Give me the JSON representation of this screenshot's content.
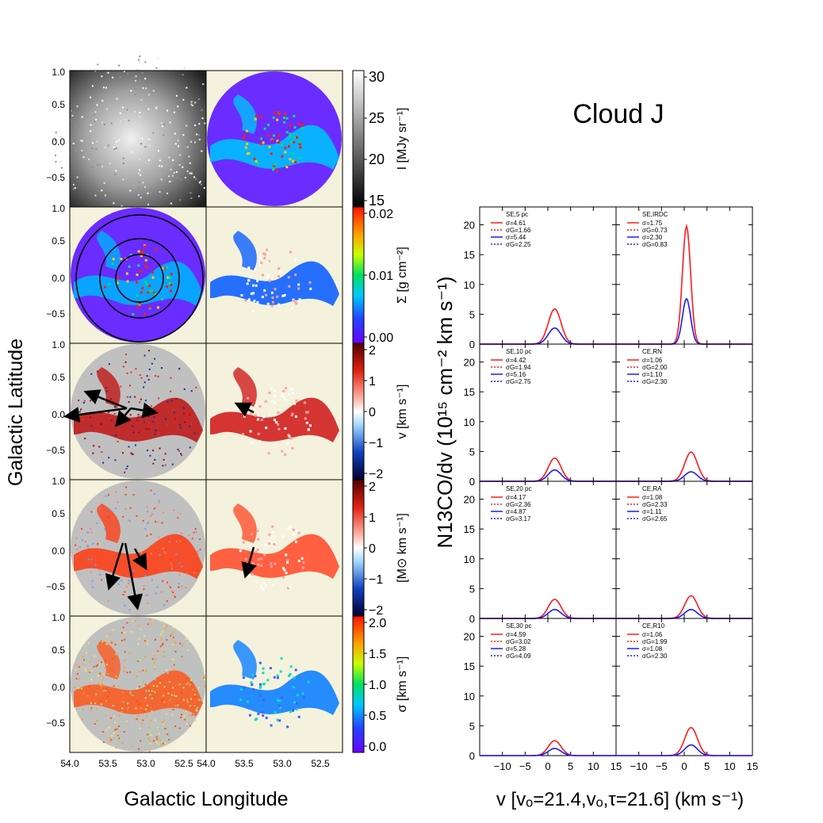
{
  "title": "Cloud J",
  "colors": {
    "red": "#ff1a1a",
    "blue": "#1a1aff",
    "cream": "#f4f2dc",
    "gray": "#c0c0c0",
    "purple": "#6a2cff"
  },
  "maps": {
    "xlabel": "Galactic Longitude",
    "ylabel": "Galactic Latitude",
    "x_ticks": [
      "54.0",
      "53.5",
      "53.0",
      "52.5"
    ],
    "x_ticks_right": [
      "54.0",
      "53.5",
      "53.0",
      "52.5"
    ],
    "y_ticks": [
      "1.0",
      "0.5",
      "0.0",
      "−0.5"
    ],
    "colorbars": [
      {
        "label": "I [MJy sr⁻¹]",
        "ticks": [
          "30",
          "25",
          "20",
          "15"
        ]
      },
      {
        "label": "Σ [g cm⁻²]",
        "ticks": [
          "0.02",
          "0.01",
          "0.00"
        ]
      },
      {
        "label": "v [km s⁻¹]",
        "ticks": [
          "2",
          "1",
          "0",
          "−1",
          "−2"
        ]
      },
      {
        "label": "[M⊙ km s⁻¹]",
        "ticks": [
          "2",
          "1",
          "0",
          "−1",
          "−2"
        ]
      },
      {
        "label": "σ [km s⁻¹]",
        "ticks": [
          "2.0",
          "1.5",
          "1.0",
          "0.5",
          "0.0"
        ]
      }
    ]
  },
  "chart_data": {
    "type": "line",
    "xlabel": "v [vₒ=21.4,vₒ,τ=21.6] (km s⁻¹)",
    "ylabel": "N13CO/dv (10¹⁵ cm⁻² km s⁻¹)",
    "xlim": [
      -15,
      15
    ],
    "ylim": [
      0,
      23
    ],
    "x_ticks": [
      "−10",
      "−5",
      "0",
      "5",
      "10",
      "15"
    ],
    "y_ticks": [
      "0",
      "5",
      "10",
      "15",
      "20"
    ],
    "panels": [
      {
        "label": "SE,5 pc",
        "legend": [
          "σ=4.61",
          "σG=1.66",
          "σ=5.44",
          "σG=2.25"
        ],
        "peaks": {
          "red": 5.9,
          "blue": 2.7
        }
      },
      {
        "label": "SE,IRDC",
        "legend": [
          "σ=1.75",
          "σG=0.73",
          "σ=2.30",
          "σG=0.83"
        ],
        "peaks": {
          "red": 19.8,
          "blue": 7.6
        }
      },
      {
        "label": "SE,10 pc",
        "legend": [
          "σ=4.42",
          "σG=1.94",
          "σ=5.16",
          "σG=2.75"
        ],
        "peaks": {
          "red": 3.9,
          "blue": 1.9
        }
      },
      {
        "label": "CE,RN",
        "legend": [
          "σ=1.06",
          "σG=2.00",
          "σ=1.10",
          "σG=2.30"
        ],
        "peaks": {
          "red": 4.9,
          "blue": 1.6
        }
      },
      {
        "label": "SE,20 pc",
        "legend": [
          "σ=4.17",
          "σG=2.36",
          "σ=4.87",
          "σG=3.17"
        ],
        "peaks": {
          "red": 3.2,
          "blue": 1.5
        }
      },
      {
        "label": "CE,RA",
        "legend": [
          "σ=1.08",
          "σG=2.33",
          "σ=1.11",
          "σG=2.65"
        ],
        "peaks": {
          "red": 3.8,
          "blue": 1.5
        }
      },
      {
        "label": "SE,30 pc",
        "legend": [
          "σ=4.59",
          "σG=3.02",
          "σ=5.28",
          "σG=4.09"
        ],
        "peaks": {
          "red": 2.5,
          "blue": 1.2
        }
      },
      {
        "label": "CE,R10",
        "legend": [
          "σ=1.06",
          "σG=1.99",
          "σ=1.08",
          "σG=2.30"
        ],
        "peaks": {
          "red": 4.7,
          "blue": 1.8
        }
      }
    ],
    "peak_velocity": 1.5
  }
}
